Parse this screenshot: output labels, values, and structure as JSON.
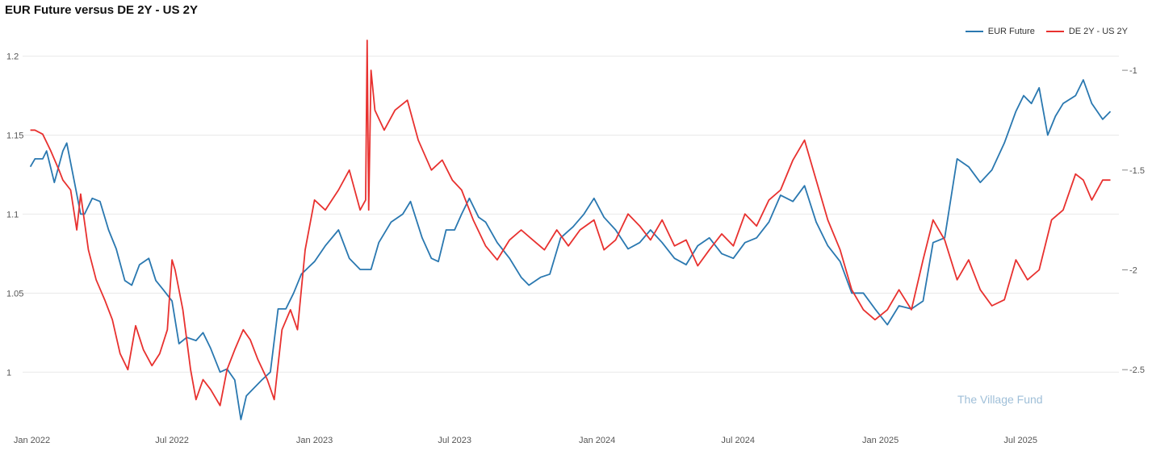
{
  "chart_data": {
    "type": "line",
    "title": "EUR Future versus DE 2Y - US 2Y",
    "x_labels": [
      "Jan 2022",
      "Jul 2022",
      "Jan 2023",
      "Jul 2023",
      "Jan 2024",
      "Jul 2024",
      "Jan 2025",
      "Jul 2025"
    ],
    "y_left": {
      "ticks": [
        "1",
        "1.05",
        "1.1",
        "1.15",
        "1.2"
      ],
      "range": [
        0.97,
        1.21
      ]
    },
    "y_right": {
      "ticks": [
        "-1",
        "-1.5",
        "-2",
        "-2.5"
      ],
      "range": [
        -2.75,
        -0.85
      ]
    },
    "grid": true,
    "legend": "top-right",
    "series": [
      {
        "name": "EUR Future",
        "axis": "left",
        "color": "#2a78b0",
        "points": [
          [
            "2021-12-30",
            1.13
          ],
          [
            "2022-01-05",
            1.135
          ],
          [
            "2022-01-15",
            1.135
          ],
          [
            "2022-01-20",
            1.14
          ],
          [
            "2022-01-30",
            1.12
          ],
          [
            "2022-02-10",
            1.14
          ],
          [
            "2022-02-15",
            1.145
          ],
          [
            "2022-02-25",
            1.12
          ],
          [
            "2022-03-05",
            1.1
          ],
          [
            "2022-03-10",
            1.1
          ],
          [
            "2022-03-20",
            1.11
          ],
          [
            "2022-03-30",
            1.108
          ],
          [
            "2022-04-10",
            1.09
          ],
          [
            "2022-04-20",
            1.078
          ],
          [
            "2022-05-01",
            1.058
          ],
          [
            "2022-05-10",
            1.055
          ],
          [
            "2022-05-20",
            1.068
          ],
          [
            "2022-06-01",
            1.072
          ],
          [
            "2022-06-10",
            1.058
          ],
          [
            "2022-06-20",
            1.052
          ],
          [
            "2022-07-01",
            1.045
          ],
          [
            "2022-07-10",
            1.018
          ],
          [
            "2022-07-20",
            1.022
          ],
          [
            "2022-08-01",
            1.02
          ],
          [
            "2022-08-10",
            1.025
          ],
          [
            "2022-08-20",
            1.015
          ],
          [
            "2022-09-01",
            1.0
          ],
          [
            "2022-09-10",
            1.002
          ],
          [
            "2022-09-20",
            0.995
          ],
          [
            "2022-09-28",
            0.97
          ],
          [
            "2022-10-05",
            0.985
          ],
          [
            "2022-10-15",
            0.99
          ],
          [
            "2022-10-25",
            0.995
          ],
          [
            "2022-11-05",
            1.0
          ],
          [
            "2022-11-15",
            1.04
          ],
          [
            "2022-11-25",
            1.04
          ],
          [
            "2022-12-05",
            1.05
          ],
          [
            "2022-12-15",
            1.062
          ],
          [
            "2023-01-01",
            1.07
          ],
          [
            "2023-01-15",
            1.08
          ],
          [
            "2023-02-01",
            1.09
          ],
          [
            "2023-02-15",
            1.072
          ],
          [
            "2023-03-01",
            1.065
          ],
          [
            "2023-03-15",
            1.065
          ],
          [
            "2023-03-25",
            1.082
          ],
          [
            "2023-04-10",
            1.095
          ],
          [
            "2023-04-25",
            1.1
          ],
          [
            "2023-05-05",
            1.108
          ],
          [
            "2023-05-20",
            1.085
          ],
          [
            "2023-06-01",
            1.072
          ],
          [
            "2023-06-10",
            1.07
          ],
          [
            "2023-06-20",
            1.09
          ],
          [
            "2023-07-01",
            1.09
          ],
          [
            "2023-07-10",
            1.1
          ],
          [
            "2023-07-20",
            1.11
          ],
          [
            "2023-08-01",
            1.098
          ],
          [
            "2023-08-10",
            1.095
          ],
          [
            "2023-08-25",
            1.082
          ],
          [
            "2023-09-10",
            1.072
          ],
          [
            "2023-09-25",
            1.06
          ],
          [
            "2023-10-05",
            1.055
          ],
          [
            "2023-10-20",
            1.06
          ],
          [
            "2023-11-01",
            1.062
          ],
          [
            "2023-11-15",
            1.085
          ],
          [
            "2023-12-01",
            1.092
          ],
          [
            "2023-12-15",
            1.1
          ],
          [
            "2023-12-28",
            1.11
          ],
          [
            "2024-01-10",
            1.098
          ],
          [
            "2024-01-25",
            1.09
          ],
          [
            "2024-02-10",
            1.078
          ],
          [
            "2024-02-25",
            1.082
          ],
          [
            "2024-03-10",
            1.09
          ],
          [
            "2024-03-25",
            1.082
          ],
          [
            "2024-04-10",
            1.072
          ],
          [
            "2024-04-25",
            1.068
          ],
          [
            "2024-05-10",
            1.08
          ],
          [
            "2024-05-25",
            1.085
          ],
          [
            "2024-06-10",
            1.075
          ],
          [
            "2024-06-25",
            1.072
          ],
          [
            "2024-07-10",
            1.082
          ],
          [
            "2024-07-25",
            1.085
          ],
          [
            "2024-08-10",
            1.095
          ],
          [
            "2024-08-25",
            1.112
          ],
          [
            "2024-09-10",
            1.108
          ],
          [
            "2024-09-25",
            1.118
          ],
          [
            "2024-10-10",
            1.095
          ],
          [
            "2024-10-25",
            1.08
          ],
          [
            "2024-11-10",
            1.07
          ],
          [
            "2024-11-25",
            1.05
          ],
          [
            "2024-12-10",
            1.05
          ],
          [
            "2024-12-25",
            1.04
          ],
          [
            "2025-01-10",
            1.03
          ],
          [
            "2025-01-25",
            1.042
          ],
          [
            "2025-02-10",
            1.04
          ],
          [
            "2025-02-25",
            1.045
          ],
          [
            "2025-03-10",
            1.082
          ],
          [
            "2025-03-25",
            1.085
          ],
          [
            "2025-04-10",
            1.135
          ],
          [
            "2025-04-25",
            1.13
          ],
          [
            "2025-05-10",
            1.12
          ],
          [
            "2025-05-25",
            1.128
          ],
          [
            "2025-06-10",
            1.145
          ],
          [
            "2025-06-25",
            1.165
          ],
          [
            "2025-07-05",
            1.175
          ],
          [
            "2025-07-15",
            1.17
          ],
          [
            "2025-07-25",
            1.18
          ],
          [
            "2025-08-05",
            1.15
          ],
          [
            "2025-08-15",
            1.162
          ],
          [
            "2025-08-25",
            1.17
          ],
          [
            "2025-09-10",
            1.175
          ],
          [
            "2025-09-20",
            1.185
          ],
          [
            "2025-10-01",
            1.17
          ],
          [
            "2025-10-15",
            1.16
          ],
          [
            "2025-10-25",
            1.165
          ]
        ]
      },
      {
        "name": "DE 2Y - US 2Y",
        "axis": "right",
        "color": "#e8312f",
        "points": [
          [
            "2021-12-30",
            -1.3
          ],
          [
            "2022-01-05",
            -1.3
          ],
          [
            "2022-01-15",
            -1.32
          ],
          [
            "2022-01-25",
            -1.4
          ],
          [
            "2022-02-05",
            -1.5
          ],
          [
            "2022-02-10",
            -1.55
          ],
          [
            "2022-02-20",
            -1.6
          ],
          [
            "2022-02-28",
            -1.8
          ],
          [
            "2022-03-05",
            -1.62
          ],
          [
            "2022-03-15",
            -1.9
          ],
          [
            "2022-03-25",
            -2.05
          ],
          [
            "2022-04-05",
            -2.15
          ],
          [
            "2022-04-15",
            -2.25
          ],
          [
            "2022-04-25",
            -2.42
          ],
          [
            "2022-05-05",
            -2.5
          ],
          [
            "2022-05-15",
            -2.28
          ],
          [
            "2022-05-25",
            -2.4
          ],
          [
            "2022-06-05",
            -2.48
          ],
          [
            "2022-06-15",
            -2.42
          ],
          [
            "2022-06-25",
            -2.3
          ],
          [
            "2022-07-01",
            -1.95
          ],
          [
            "2022-07-05",
            -2.0
          ],
          [
            "2022-07-15",
            -2.2
          ],
          [
            "2022-07-25",
            -2.5
          ],
          [
            "2022-08-01",
            -2.65
          ],
          [
            "2022-08-10",
            -2.55
          ],
          [
            "2022-08-20",
            -2.6
          ],
          [
            "2022-09-01",
            -2.68
          ],
          [
            "2022-09-10",
            -2.5
          ],
          [
            "2022-09-20",
            -2.4
          ],
          [
            "2022-10-01",
            -2.3
          ],
          [
            "2022-10-10",
            -2.35
          ],
          [
            "2022-10-20",
            -2.45
          ],
          [
            "2022-11-01",
            -2.55
          ],
          [
            "2022-11-10",
            -2.65
          ],
          [
            "2022-11-20",
            -2.3
          ],
          [
            "2022-12-01",
            -2.2
          ],
          [
            "2022-12-10",
            -2.3
          ],
          [
            "2022-12-20",
            -1.9
          ],
          [
            "2023-01-01",
            -1.65
          ],
          [
            "2023-01-15",
            -1.7
          ],
          [
            "2023-02-01",
            -1.6
          ],
          [
            "2023-02-15",
            -1.5
          ],
          [
            "2023-03-01",
            -1.7
          ],
          [
            "2023-03-08",
            -1.65
          ],
          [
            "2023-03-10",
            -0.85
          ],
          [
            "2023-03-12",
            -1.7
          ],
          [
            "2023-03-15",
            -1.0
          ],
          [
            "2023-03-20",
            -1.2
          ],
          [
            "2023-04-01",
            -1.3
          ],
          [
            "2023-04-15",
            -1.2
          ],
          [
            "2023-05-01",
            -1.15
          ],
          [
            "2023-05-15",
            -1.35
          ],
          [
            "2023-06-01",
            -1.5
          ],
          [
            "2023-06-15",
            -1.45
          ],
          [
            "2023-06-28",
            -1.55
          ],
          [
            "2023-07-10",
            -1.6
          ],
          [
            "2023-07-25",
            -1.75
          ],
          [
            "2023-08-10",
            -1.88
          ],
          [
            "2023-08-25",
            -1.95
          ],
          [
            "2023-09-10",
            -1.85
          ],
          [
            "2023-09-25",
            -1.8
          ],
          [
            "2023-10-10",
            -1.85
          ],
          [
            "2023-10-25",
            -1.9
          ],
          [
            "2023-11-10",
            -1.8
          ],
          [
            "2023-11-25",
            -1.88
          ],
          [
            "2023-12-10",
            -1.8
          ],
          [
            "2023-12-28",
            -1.75
          ],
          [
            "2024-01-10",
            -1.9
          ],
          [
            "2024-01-25",
            -1.85
          ],
          [
            "2024-02-10",
            -1.72
          ],
          [
            "2024-02-25",
            -1.78
          ],
          [
            "2024-03-10",
            -1.85
          ],
          [
            "2024-03-25",
            -1.75
          ],
          [
            "2024-04-10",
            -1.88
          ],
          [
            "2024-04-25",
            -1.85
          ],
          [
            "2024-05-10",
            -1.98
          ],
          [
            "2024-05-25",
            -1.9
          ],
          [
            "2024-06-10",
            -1.82
          ],
          [
            "2024-06-25",
            -1.88
          ],
          [
            "2024-07-10",
            -1.72
          ],
          [
            "2024-07-25",
            -1.78
          ],
          [
            "2024-08-10",
            -1.65
          ],
          [
            "2024-08-25",
            -1.6
          ],
          [
            "2024-09-10",
            -1.45
          ],
          [
            "2024-09-25",
            -1.35
          ],
          [
            "2024-10-10",
            -1.55
          ],
          [
            "2024-10-25",
            -1.75
          ],
          [
            "2024-11-10",
            -1.9
          ],
          [
            "2024-11-25",
            -2.1
          ],
          [
            "2024-12-10",
            -2.2
          ],
          [
            "2024-12-25",
            -2.25
          ],
          [
            "2025-01-10",
            -2.2
          ],
          [
            "2025-01-25",
            -2.1
          ],
          [
            "2025-02-10",
            -2.2
          ],
          [
            "2025-02-25",
            -1.95
          ],
          [
            "2025-03-10",
            -1.75
          ],
          [
            "2025-03-25",
            -1.85
          ],
          [
            "2025-04-10",
            -2.05
          ],
          [
            "2025-04-25",
            -1.95
          ],
          [
            "2025-05-10",
            -2.1
          ],
          [
            "2025-05-25",
            -2.18
          ],
          [
            "2025-06-10",
            -2.15
          ],
          [
            "2025-06-25",
            -1.95
          ],
          [
            "2025-07-10",
            -2.05
          ],
          [
            "2025-07-25",
            -2.0
          ],
          [
            "2025-08-10",
            -1.75
          ],
          [
            "2025-08-25",
            -1.7
          ],
          [
            "2025-09-10",
            -1.52
          ],
          [
            "2025-09-20",
            -1.55
          ],
          [
            "2025-10-01",
            -1.65
          ],
          [
            "2025-10-15",
            -1.55
          ],
          [
            "2025-10-25",
            -1.55
          ]
        ]
      }
    ],
    "watermark": "The Village Fund"
  }
}
